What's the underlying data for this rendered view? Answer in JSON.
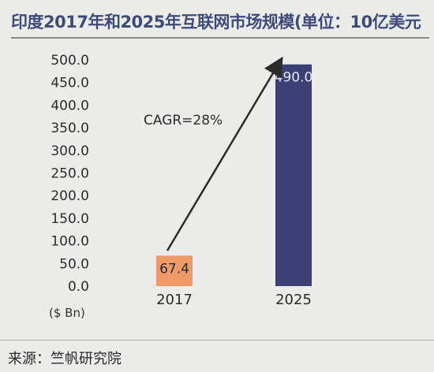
{
  "source": "来源：竺帆研究院",
  "chart_data": {
    "type": "bar",
    "title": "印度2017年和2025年互联网市场规模(单位：10亿美元",
    "unit_label": "($ Bn)",
    "categories": [
      "2017",
      "2025"
    ],
    "values": [
      67.4,
      490.0
    ],
    "value_labels": [
      "67.4",
      "490.0"
    ],
    "bar_colors": [
      "#ee9a68",
      "#3b3f73"
    ],
    "value_label_colors": [
      "#2b2b2b",
      "#e6e6f0"
    ],
    "ylim": [
      0,
      500
    ],
    "yticks": [
      "0.0",
      "50.0",
      "100.0",
      "150.0",
      "200.0",
      "250.0",
      "300.0",
      "350.0",
      "400.0",
      "450.0",
      "500.0"
    ],
    "annotation": "CAGR=28%",
    "grid": false,
    "legend": "none"
  }
}
